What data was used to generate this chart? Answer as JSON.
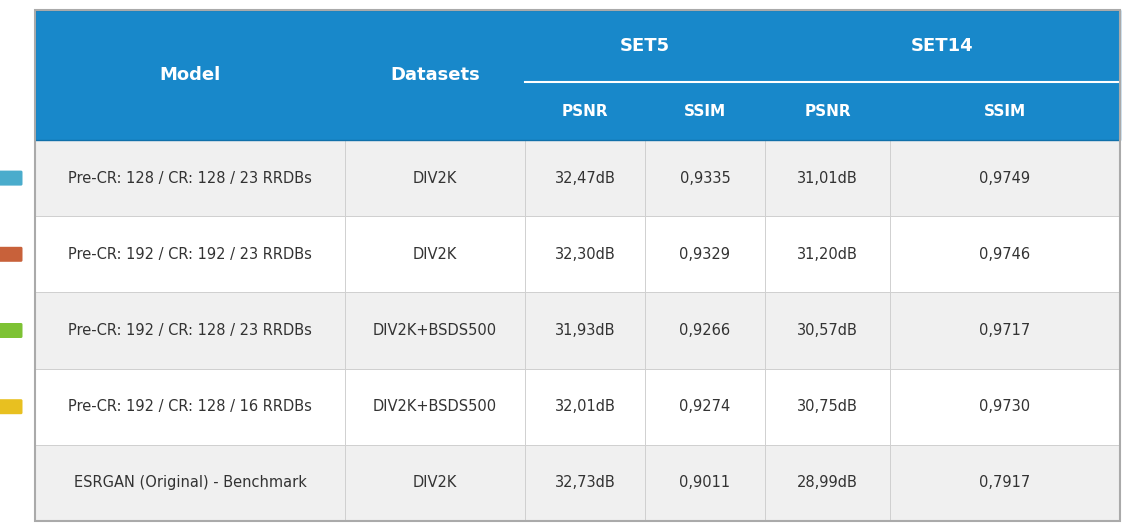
{
  "header_bg_color": "#1888ca",
  "header_text_color": "#ffffff",
  "row_bg_light": "#f0f0f0",
  "row_bg_white": "#ffffff",
  "border_color": "#d0d0d0",
  "text_color": "#333333",
  "col1_header": "Model",
  "col2_header": "Datasets",
  "group1_header": "SET5",
  "group2_header": "SET14",
  "sub_headers": [
    "PSNR",
    "SSIM",
    "PSNR",
    "SSIM"
  ],
  "rows": [
    {
      "model": "Pre-CR: 128 / CR: 128 / 23 RRDBs",
      "dataset": "DIV2K",
      "set5_psnr": "32,47dB",
      "set5_ssim": "0,9335",
      "set14_psnr": "31,01dB",
      "set14_ssim": "0,9749",
      "marker_color": "#4AACCC",
      "bg": "light"
    },
    {
      "model": "Pre-CR: 192 / CR: 192 / 23 RRDBs",
      "dataset": "DIV2K",
      "set5_psnr": "32,30dB",
      "set5_ssim": "0,9329",
      "set14_psnr": "31,20dB",
      "set14_ssim": "0,9746",
      "marker_color": "#C8613A",
      "bg": "white"
    },
    {
      "model": "Pre-CR: 192 / CR: 128 / 23 RRDBs",
      "dataset": "DIV2K+BSDS500",
      "set5_psnr": "31,93dB",
      "set5_ssim": "0,9266",
      "set14_psnr": "30,57dB",
      "set14_ssim": "0,9717",
      "marker_color": "#7DC234",
      "bg": "light"
    },
    {
      "model": "Pre-CR: 192 / CR: 128 / 16 RRDBs",
      "dataset": "DIV2K+BSDS500",
      "set5_psnr": "32,01dB",
      "set5_ssim": "0,9274",
      "set14_psnr": "30,75dB",
      "set14_ssim": "0,9730",
      "marker_color": "#E8C020",
      "bg": "white"
    },
    {
      "model": "ESRGAN (Original) - Benchmark",
      "dataset": "DIV2K",
      "set5_psnr": "32,73dB",
      "set5_ssim": "0,9011",
      "set14_psnr": "28,99dB",
      "set14_ssim": "0,7917",
      "marker_color": null,
      "bg": "light"
    }
  ],
  "font_size_header_main": 13,
  "font_size_header_sub": 11,
  "font_size_data": 10.5
}
